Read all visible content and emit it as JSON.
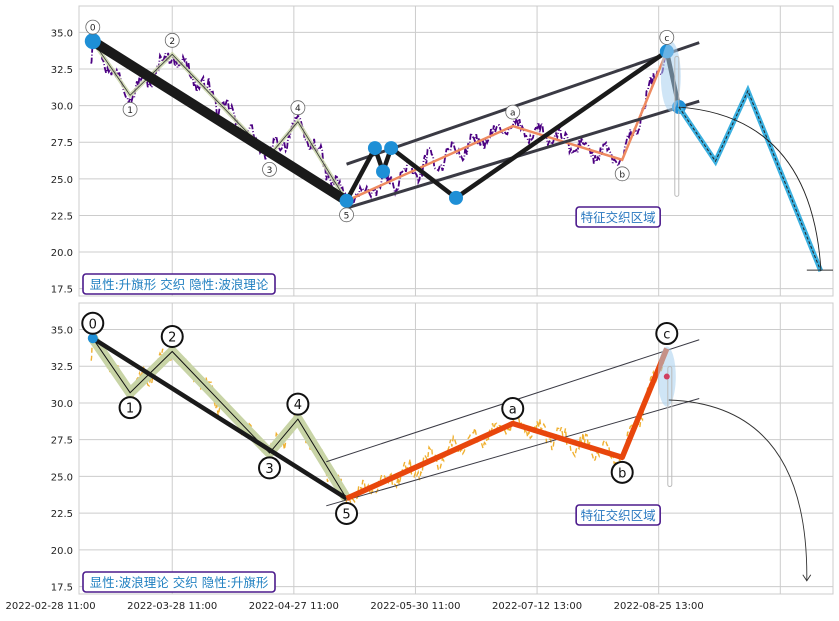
{
  "chart_data": [
    {
      "type": "line",
      "panel": "top",
      "ylim": [
        17,
        36.8
      ],
      "yticks": [
        17.5,
        20.0,
        22.5,
        25.0,
        27.5,
        30.0,
        32.5,
        35.0
      ],
      "ytick_labels": [
        "17.5",
        "20.0",
        "22.5",
        "25.0",
        "27.5",
        "30.0",
        "32.5",
        "35.0"
      ],
      "grid": true,
      "annotation_box": "显性:升旗形 交织 隐性:波浪理论",
      "zone_label": "特征交织区域",
      "price_color": "#4b0082",
      "wave_labels": [
        {
          "label": "0",
          "x": 0.2,
          "y": 34.4
        },
        {
          "label": "1",
          "x": 4.8,
          "y": 30.7
        },
        {
          "label": "2",
          "x": 10.0,
          "y": 33.5
        },
        {
          "label": "3",
          "x": 22.0,
          "y": 26.6
        },
        {
          "label": "4",
          "x": 25.5,
          "y": 28.9
        },
        {
          "label": "5",
          "x": 31.5,
          "y": 23.5
        },
        {
          "label": "a",
          "x": 52.0,
          "y": 28.6
        },
        {
          "label": "b",
          "x": 65.5,
          "y": 26.3
        },
        {
          "label": "c",
          "x": 71.0,
          "y": 33.7
        }
      ],
      "flag_pole": [
        {
          "x": 0.2,
          "y": 34.4
        },
        {
          "x": 31.5,
          "y": 23.5
        }
      ],
      "flag_points": [
        {
          "x": 31.5,
          "y": 23.5
        },
        {
          "x": 35.0,
          "y": 27.1
        },
        {
          "x": 36.0,
          "y": 25.5
        },
        {
          "x": 37.0,
          "y": 27.1
        },
        {
          "x": 45.0,
          "y": 23.7
        },
        {
          "x": 71.0,
          "y": 33.7
        },
        {
          "x": 72.5,
          "y": 29.9
        }
      ],
      "channel_upper": [
        {
          "x": 31.5,
          "y": 26.0
        },
        {
          "x": 75.0,
          "y": 34.3
        }
      ],
      "channel_lower": [
        {
          "x": 31.5,
          "y": 23.0
        },
        {
          "x": 75.0,
          "y": 30.3
        }
      ],
      "projection": [
        {
          "x": 72.5,
          "y": 29.9
        },
        {
          "x": 77.0,
          "y": 26.2
        },
        {
          "x": 81.0,
          "y": 31.0
        },
        {
          "x": 90.0,
          "y": 18.7
        }
      ]
    },
    {
      "type": "line",
      "panel": "bottom",
      "ylim": [
        17,
        36.8
      ],
      "yticks": [
        17.5,
        20.0,
        22.5,
        25.0,
        27.5,
        30.0,
        32.5,
        35.0
      ],
      "ytick_labels": [
        "17.5",
        "20.0",
        "22.5",
        "25.0",
        "27.5",
        "30.0",
        "32.5",
        "35.0"
      ],
      "grid": true,
      "annotation_box": "显性:波浪理论 交织 隐性:升旗形",
      "zone_label": "特征交织区域",
      "price_color": "#f0b030",
      "wave_labels": [
        {
          "label": "0",
          "x": 0.2,
          "y": 34.4
        },
        {
          "label": "1",
          "x": 4.8,
          "y": 30.7
        },
        {
          "label": "2",
          "x": 10.0,
          "y": 33.5
        },
        {
          "label": "3",
          "x": 22.0,
          "y": 26.6
        },
        {
          "label": "4",
          "x": 25.5,
          "y": 28.9
        },
        {
          "label": "5",
          "x": 31.5,
          "y": 23.5
        },
        {
          "label": "a",
          "x": 52.0,
          "y": 28.6
        },
        {
          "label": "b",
          "x": 65.5,
          "y": 26.3
        },
        {
          "label": "c",
          "x": 71.0,
          "y": 33.7
        }
      ],
      "channel_upper": [
        {
          "x": 29.0,
          "y": 26.0
        },
        {
          "x": 75.0,
          "y": 34.3
        }
      ],
      "channel_lower": [
        {
          "x": 29.0,
          "y": 23.0
        },
        {
          "x": 75.0,
          "y": 30.3
        }
      ]
    }
  ],
  "x_axis": {
    "xlim": [
      -1.5,
      91.5
    ],
    "ticks": [
      {
        "x": -5.0,
        "label": "2022-02-28 11:00"
      },
      {
        "x": 10.0,
        "label": "2022-03-28 11:00"
      },
      {
        "x": 25.0,
        "label": "2022-04-27 11:00"
      },
      {
        "x": 40.0,
        "label": "2022-05-30 11:00"
      },
      {
        "x": 55.0,
        "label": "2022-07-12 13:00"
      },
      {
        "x": 70.0,
        "label": "2022-08-25 13:00"
      },
      {
        "x": 85.0,
        "label": ""
      }
    ]
  },
  "colors": {
    "grid": "#cccccc",
    "pole": "#1a1a1a",
    "flag": "#1a1a1a",
    "channel": "#3a3a44",
    "abc_top": "#ee8a60",
    "abc_bottom": "#e8460c",
    "node": "#1e8fd6",
    "impulse_fill": "#c8d4a6",
    "projection": "#3bb0e0",
    "box_border": "#4b1a8c",
    "box_text": "#1f7fc0",
    "zone_text": "#2a78c0"
  }
}
